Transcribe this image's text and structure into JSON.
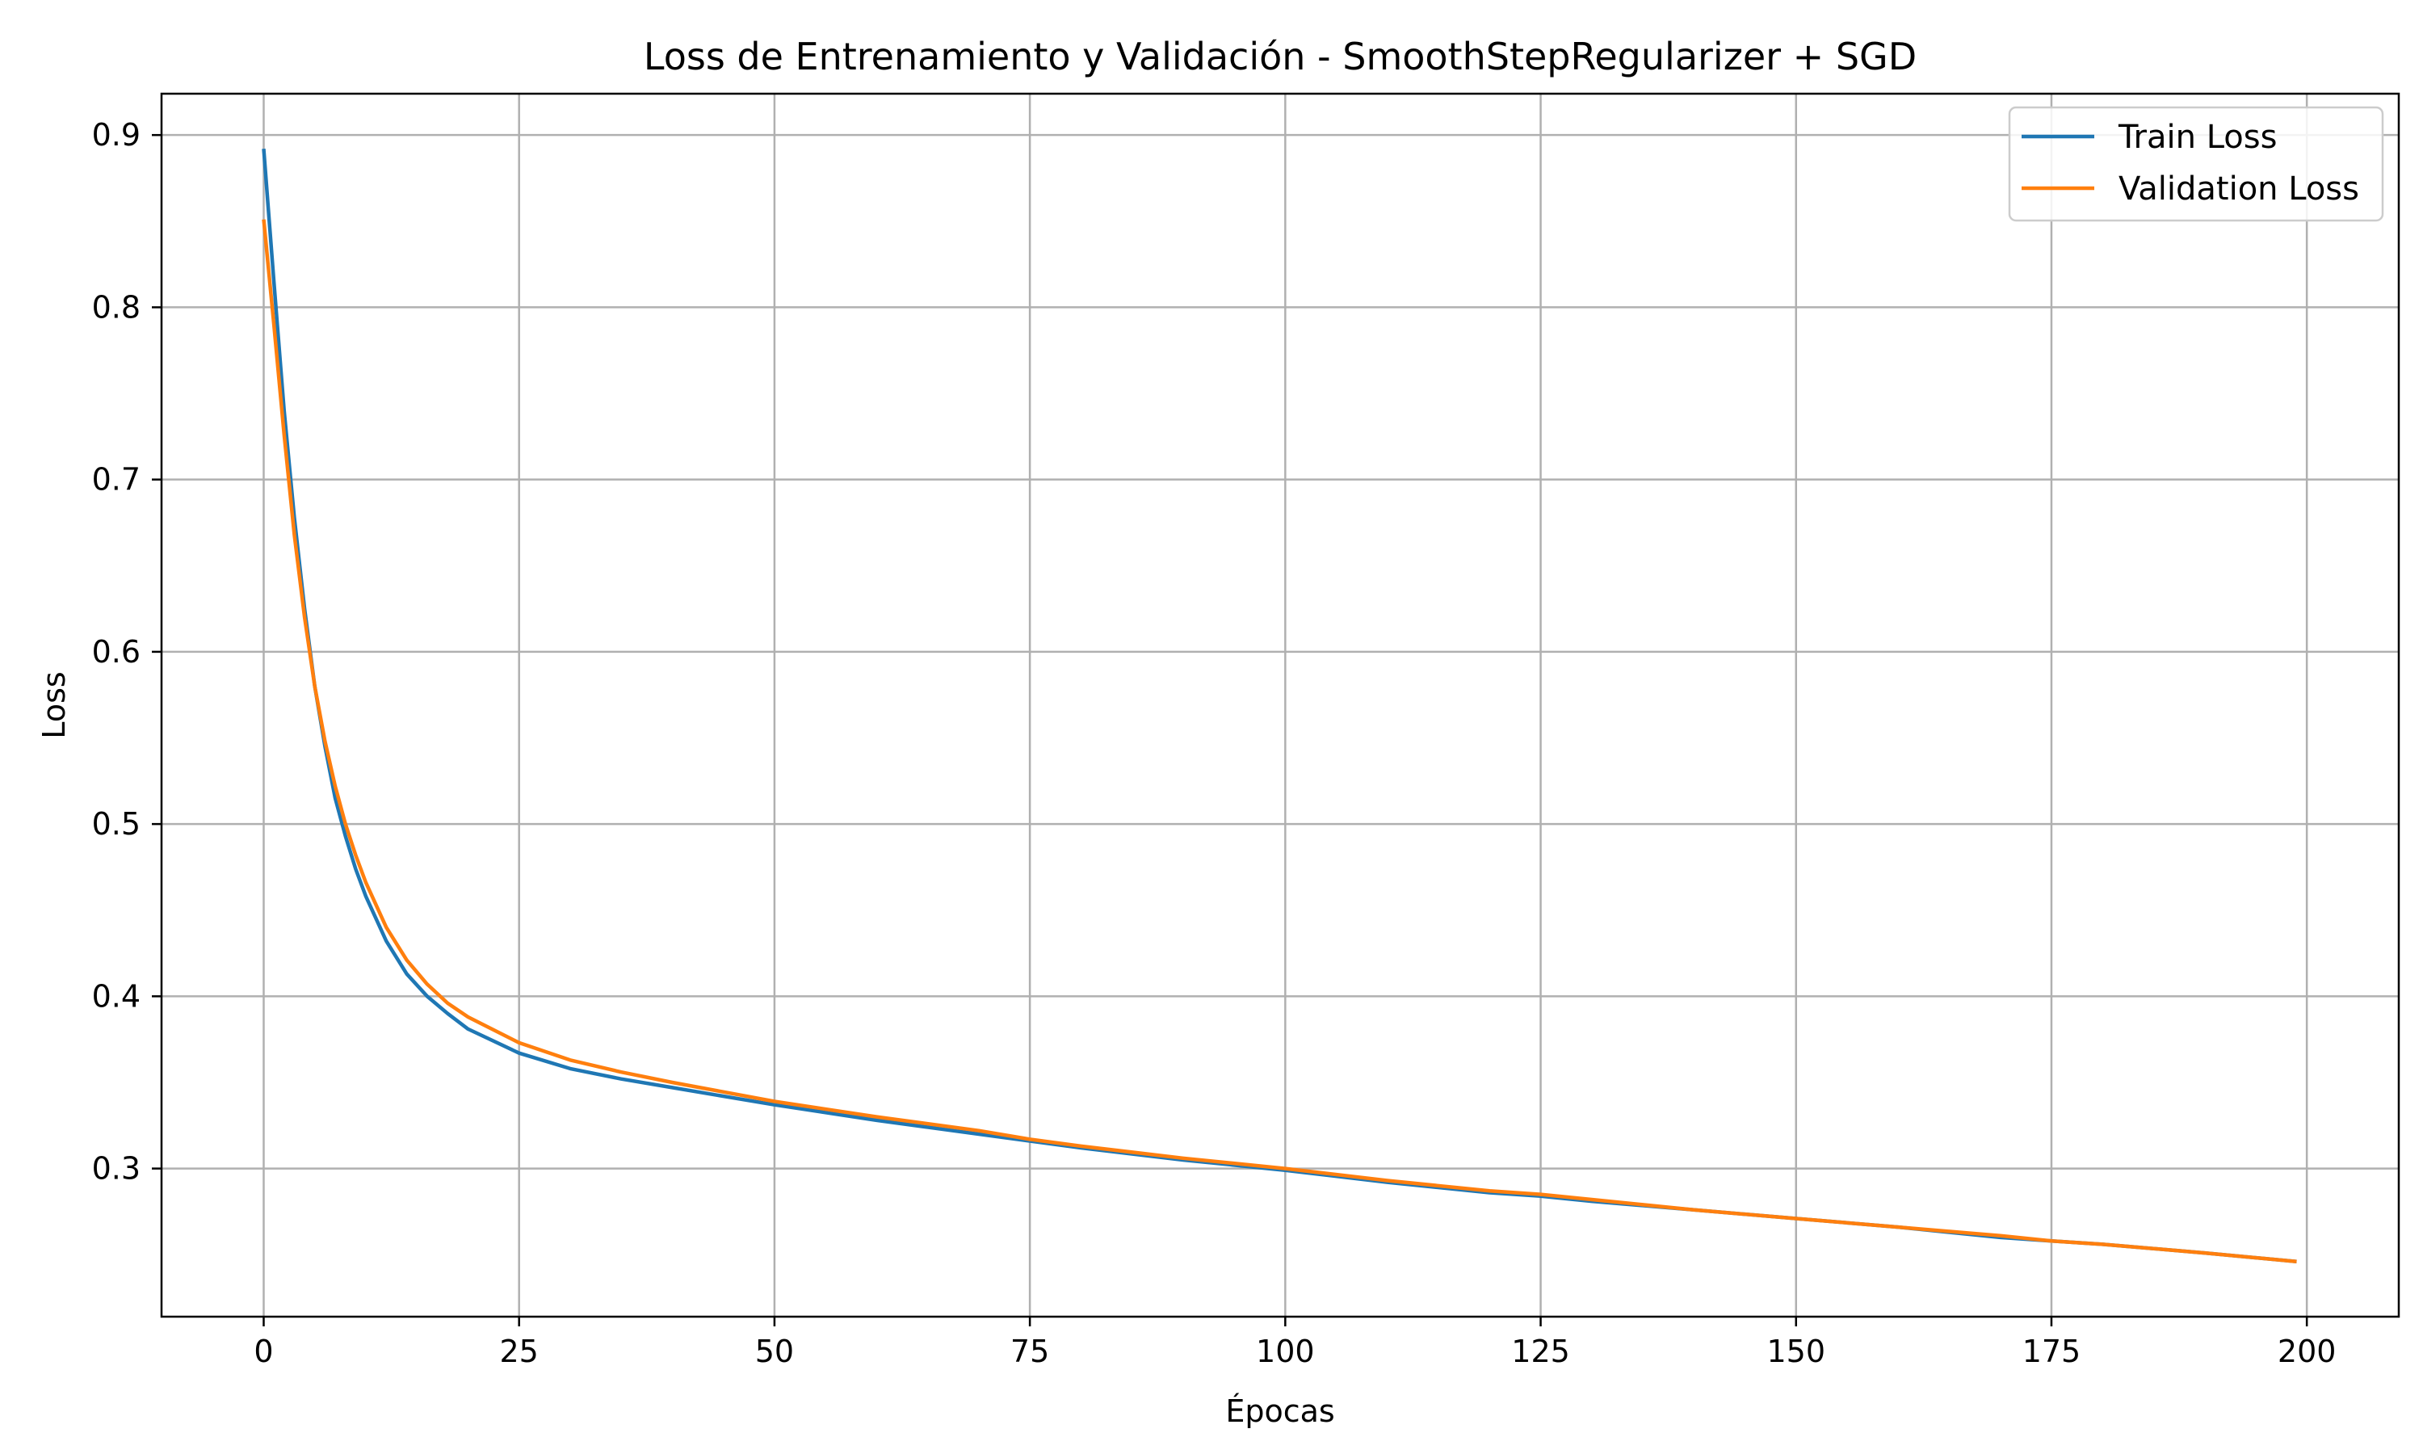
{
  "chart_data": {
    "type": "line",
    "title": "Loss de Entrenamiento y Validación - SmoothStepRegularizer + SGD",
    "xlabel": "Épocas",
    "ylabel": "Loss",
    "xlim": [
      -10,
      209
    ],
    "ylim": [
      0.214,
      0.924
    ],
    "x_ticks": [
      0,
      25,
      50,
      75,
      100,
      125,
      150,
      175,
      200
    ],
    "y_ticks": [
      0.3,
      0.4,
      0.5,
      0.6,
      0.7,
      0.8,
      0.9
    ],
    "grid": true,
    "legend_position": "top-right",
    "series": [
      {
        "name": "Train Loss",
        "color": "#1f77b4",
        "x": [
          0,
          1,
          2,
          3,
          4,
          5,
          6,
          7,
          8,
          9,
          10,
          12,
          14,
          16,
          18,
          20,
          25,
          30,
          35,
          40,
          50,
          60,
          70,
          75,
          80,
          90,
          100,
          110,
          120,
          125,
          130,
          140,
          150,
          160,
          170,
          175,
          180,
          190,
          199
        ],
        "y": [
          0.892,
          0.815,
          0.74,
          0.678,
          0.625,
          0.58,
          0.545,
          0.515,
          0.493,
          0.474,
          0.458,
          0.432,
          0.413,
          0.4,
          0.39,
          0.381,
          0.367,
          0.358,
          0.352,
          0.347,
          0.337,
          0.328,
          0.32,
          0.316,
          0.312,
          0.305,
          0.299,
          0.292,
          0.286,
          0.284,
          0.281,
          0.276,
          0.271,
          0.266,
          0.26,
          0.258,
          0.256,
          0.251,
          0.246
        ]
      },
      {
        "name": "Validation Loss",
        "color": "#ff7f0e",
        "x": [
          0,
          1,
          2,
          3,
          4,
          5,
          6,
          7,
          8,
          9,
          10,
          12,
          14,
          16,
          18,
          20,
          25,
          30,
          35,
          40,
          50,
          60,
          70,
          75,
          80,
          90,
          100,
          110,
          120,
          125,
          130,
          140,
          150,
          160,
          170,
          175,
          180,
          190,
          199
        ],
        "y": [
          0.851,
          0.79,
          0.726,
          0.668,
          0.62,
          0.58,
          0.548,
          0.522,
          0.5,
          0.482,
          0.466,
          0.44,
          0.421,
          0.407,
          0.396,
          0.388,
          0.373,
          0.363,
          0.356,
          0.35,
          0.339,
          0.33,
          0.322,
          0.317,
          0.313,
          0.306,
          0.3,
          0.293,
          0.287,
          0.285,
          0.282,
          0.276,
          0.271,
          0.266,
          0.261,
          0.258,
          0.256,
          0.251,
          0.246
        ]
      }
    ]
  }
}
